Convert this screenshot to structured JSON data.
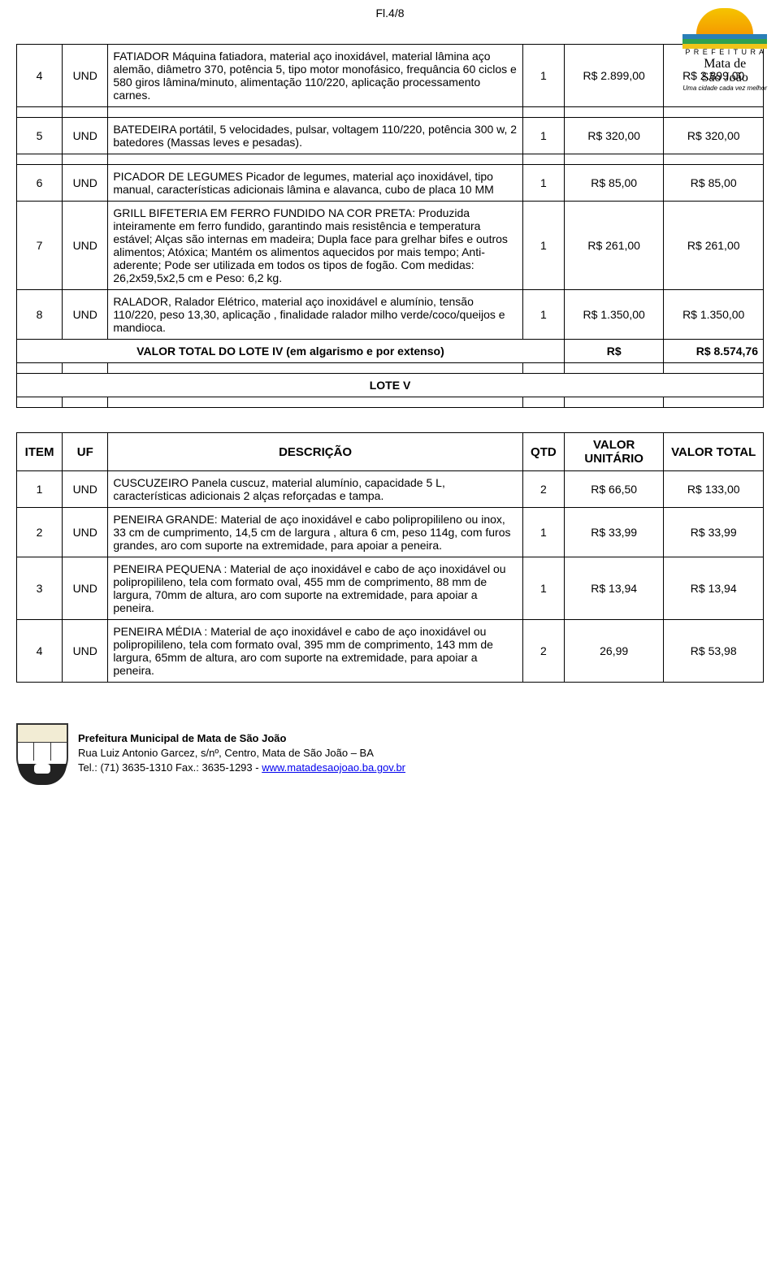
{
  "page_label": "Fl.4/8",
  "header_logo": {
    "line1": "P R E F E I T U R A",
    "line2": "Mata de",
    "line3": "São João",
    "tagline": "Uma cidade cada vez melhor"
  },
  "lote4": {
    "rows": [
      {
        "item": "4",
        "uf": "UND",
        "desc": "FATIADOR Máquina fatiadora, material aço inoxidável, material lâmina aço alemão, diâmetro 370, potência 5, tipo motor monofásico, frequância 60 ciclos e 580 giros lâmina/minuto, alimentação 110/220, aplicação processamento carnes.",
        "qtd": "1",
        "unit": "R$ 2.899,00",
        "total": "R$ 2.899,00"
      },
      {
        "item": "5",
        "uf": "UND",
        "desc": "BATEDEIRA portátil, 5 velocidades, pulsar, voltagem 110/220, potência 300 w, 2 batedores (Massas leves e pesadas).",
        "qtd": "1",
        "unit": "R$ 320,00",
        "total": "R$ 320,00"
      },
      {
        "item": "6",
        "uf": "UND",
        "desc": "PICADOR DE LEGUMES Picador de legumes, material aço inoxidável, tipo manual, características adicionais lâmina e alavanca, cubo de placa 10 MM",
        "qtd": "1",
        "unit": "R$ 85,00",
        "total": "R$ 85,00"
      },
      {
        "item": "7",
        "uf": "UND",
        "desc": "GRILL BIFETERIA EM FERRO FUNDIDO NA COR PRETA: Produzida inteiramente em ferro fundido, garantindo mais resistência e temperatura estável; Alças são internas em madeira; Dupla face para grelhar bifes e outros alimentos; Atóxica; Mantém os alimentos aquecidos por mais tempo; Anti-aderente; Pode ser utilizada em todos os tipos de fogão. Com medidas: 26,2x59,5x2,5 cm e Peso: 6,2 kg.",
        "qtd": "1",
        "unit": "R$ 261,00",
        "total": "R$ 261,00"
      },
      {
        "item": "8",
        "uf": "UND",
        "desc": "RALADOR, Ralador Elétrico, material aço inoxidável e alumínio, tensão 110/220, peso 13,30, aplicação , finalidade ralador milho verde/coco/queijos e mandioca.",
        "qtd": "1",
        "unit": "R$ 1.350,00",
        "total": "R$ 1.350,00"
      }
    ],
    "total_label": "VALOR TOTAL DO LOTE IV (em algarismo e por extenso)",
    "total_curr": "R$",
    "total_value": "R$ 8.574,76"
  },
  "lote5": {
    "title": "LOTE V",
    "headers": {
      "item": "ITEM",
      "uf": "UF",
      "desc": "DESCRIÇÃO",
      "qtd": "QTD",
      "unit": "VALOR UNITÁRIO",
      "total": "VALOR TOTAL"
    },
    "rows": [
      {
        "item": "1",
        "uf": "UND",
        "desc": "CUSCUZEIRO Panela cuscuz, material alumínio, capacidade 5 L, características adicionais 2 alças reforçadas e tampa.",
        "qtd": "2",
        "unit": "R$ 66,50",
        "total": "R$ 133,00"
      },
      {
        "item": "2",
        "uf": "UND",
        "desc": "PENEIRA GRANDE: Material de aço inoxidável e cabo polipropilileno ou inox, 33 cm de cumprimento, 14,5 cm de largura , altura 6 cm, peso 114g, com furos grandes, aro com suporte na extremidade, para apoiar a peneira.",
        "qtd": "1",
        "unit": "R$ 33,99",
        "total": "R$ 33,99"
      },
      {
        "item": "3",
        "uf": "UND",
        "desc": "PENEIRA PEQUENA : Material de aço inoxidável e cabo de aço inoxidável ou polipropilileno, tela com formato oval, 455 mm de comprimento, 88 mm de largura, 70mm de altura, aro com suporte na extremidade, para apoiar a peneira.",
        "qtd": "1",
        "unit": "R$ 13,94",
        "total": "R$ 13,94"
      },
      {
        "item": "4",
        "uf": "UND",
        "desc": "PENEIRA MÉDIA : Material de aço inoxidável e cabo de aço inoxidável ou polipropilileno, tela com formato oval, 395 mm de comprimento, 143 mm de largura, 65mm de altura, aro com suporte na extremidade, para apoiar a peneira.",
        "qtd": "2",
        "unit": "26,99",
        "total": "R$ 53,98"
      }
    ]
  },
  "footer": {
    "line1": "Prefeitura Municipal de Mata de São João",
    "line2": "Rua Luiz Antonio Garcez, s/nº, Centro, Mata de São João – BA",
    "line3_pre": "Tel.: (71) 3635-1310 Fax.: 3635-1293 - ",
    "link": "www.matadesaojoao.ba.gov.br"
  }
}
